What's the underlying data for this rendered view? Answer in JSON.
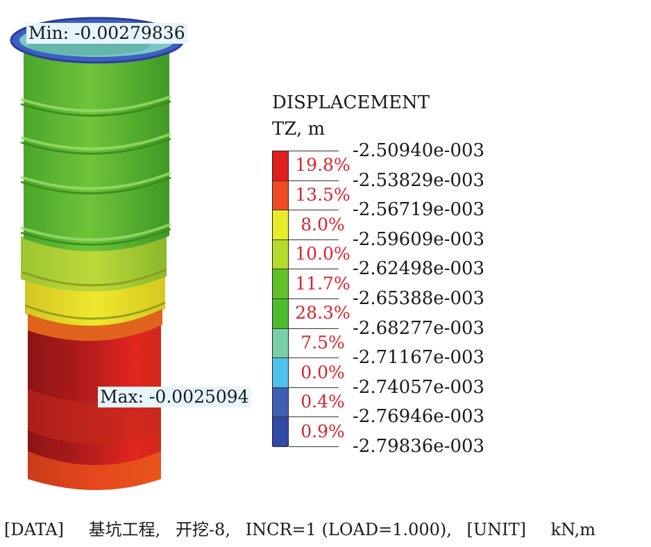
{
  "annotations": {
    "min_label": "Min: -0.00279836",
    "max_label": "Max: -0.0025094"
  },
  "legend": {
    "title": "DISPLACEMENT",
    "unit": "TZ,  m",
    "colors": [
      "#e01f1f",
      "#ef4a22",
      "#e8ec28",
      "#b6dc2b",
      "#62c12a",
      "#4cbd2c",
      "#79cfa7",
      "#4fc1ea",
      "#3f5fb3",
      "#3249a6"
    ],
    "percentages": [
      "19.8%",
      "13.5%",
      "8.0%",
      "10.0%",
      "11.7%",
      "28.3%",
      "7.5%",
      "0.0%",
      "0.4%",
      "0.9%"
    ],
    "values": [
      "-2.50940e-003",
      "-2.53829e-003",
      "-2.56719e-003",
      "-2.59609e-003",
      "-2.62498e-003",
      "-2.65388e-003",
      "-2.68277e-003",
      "-2.71167e-003",
      "-2.74057e-003",
      "-2.76946e-003",
      "-2.79836e-003"
    ]
  },
  "footer": {
    "data_tag": "[DATA]",
    "project": "基坑工程,",
    "stage": "开挖-8,",
    "incr": "INCR=1 (LOAD=1.000),",
    "unit_tag": "[UNIT]",
    "units": "kN,m"
  }
}
